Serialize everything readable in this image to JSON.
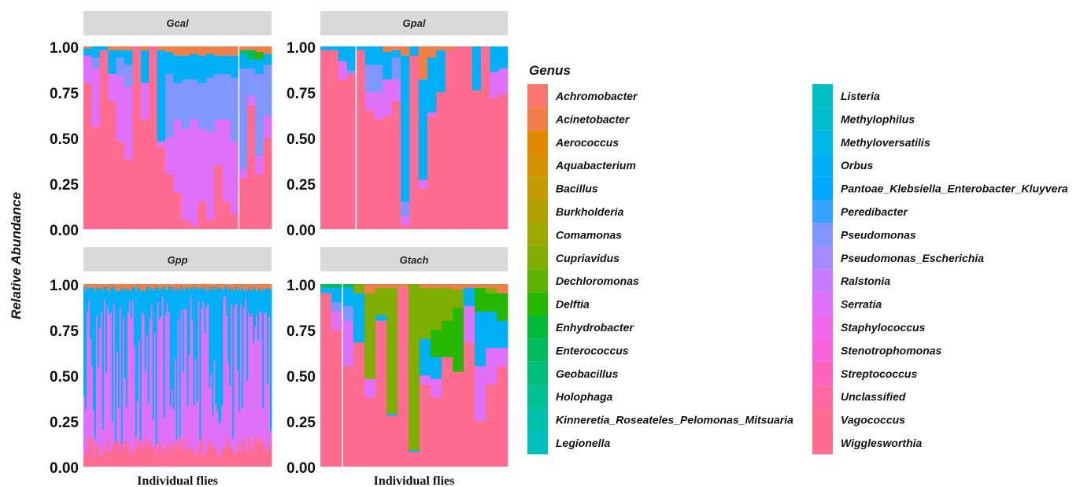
{
  "chart_data": {
    "type": "stacked-bar",
    "y_title": "Relative Abundance",
    "x_title": "Individual flies",
    "y_ticks": [
      "0.00",
      "0.25",
      "0.50",
      "0.75",
      "1.00"
    ],
    "ylim": [
      0,
      1
    ],
    "legend": {
      "title": "Genus",
      "placement": "right",
      "entries": [
        {
          "name": "Achromobacter",
          "color": "#F8766D"
        },
        {
          "name": "Acinetobacter",
          "color": "#EF7F49"
        },
        {
          "name": "Aerococcus",
          "color": "#E38900"
        },
        {
          "name": "Aquabacterium",
          "color": "#D59100"
        },
        {
          "name": "Bacillus",
          "color": "#C49A00"
        },
        {
          "name": "Burkholderia",
          "color": "#B0A100"
        },
        {
          "name": "Comamonas",
          "color": "#9AA800"
        },
        {
          "name": "Cupriavidus",
          "color": "#7FAE00"
        },
        {
          "name": "Dechloromonas",
          "color": "#5EB300"
        },
        {
          "name": "Delftia",
          "color": "#26B700"
        },
        {
          "name": "Enhydrobacter",
          "color": "#00BA38"
        },
        {
          "name": "Enterococcus",
          "color": "#00BC5C"
        },
        {
          "name": "Geobacillus",
          "color": "#00BE7A"
        },
        {
          "name": "Holophaga",
          "color": "#00C094"
        },
        {
          "name": "Kinneretia_Roseateles_Pelomonas_Mitsuaria",
          "color": "#00C1AB"
        },
        {
          "name": "Legionella",
          "color": "#00C0BE"
        },
        {
          "name": "Listeria",
          "color": "#00BFC4"
        },
        {
          "name": "Methylophilus",
          "color": "#00BDD0"
        },
        {
          "name": "Methyloversatilis",
          "color": "#00B8E7"
        },
        {
          "name": "Orbus",
          "color": "#00B0F6"
        },
        {
          "name": "Pantoae_Klebsiella_Enterobacter_Kluyvera",
          "color": "#00A9FF"
        },
        {
          "name": "Peredibacter",
          "color": "#35A2FF"
        },
        {
          "name": "Pseudomonas",
          "color": "#7F96FF"
        },
        {
          "name": "Pseudomonas_Escherichia",
          "color": "#A58AFF"
        },
        {
          "name": "Ralstonia",
          "color": "#C77CFF"
        },
        {
          "name": "Serratia",
          "color": "#DF70F8"
        },
        {
          "name": "Staphylococcus",
          "color": "#EF67EB"
        },
        {
          "name": "Stenotrophomonas",
          "color": "#FA62DB"
        },
        {
          "name": "Streptococcus",
          "color": "#FF62BC"
        },
        {
          "name": "Unclassified",
          "color": "#FF67A4"
        },
        {
          "name": "Vagococcus",
          "color": "#FF6C90"
        },
        {
          "name": "Wigglesworthia",
          "color": "#FF6C90"
        }
      ]
    },
    "facets": [
      {
        "name": "Gcal",
        "separator_after_bar": 19,
        "bars": [
          {
            "Wigglesworthia": 0.8,
            "Serratia": 0.15,
            "Orbus": 0.04,
            "Acinetobacter": 0.01
          },
          {
            "Wigglesworthia": 0.56,
            "Serratia": 0.32,
            "Pseudomonas": 0.06,
            "Orbus": 0.06
          },
          {
            "Wigglesworthia": 0.98,
            "Orbus": 0.02
          },
          {
            "Wigglesworthia": 0.7,
            "Serratia": 0.15,
            "Orbus": 0.13,
            "Acinetobacter": 0.02
          },
          {
            "Wigglesworthia": 0.48,
            "Serratia": 0.36,
            "Pseudomonas": 0.1,
            "Orbus": 0.04,
            "Acinetobacter": 0.02
          },
          {
            "Wigglesworthia": 0.38,
            "Serratia": 0.4,
            "Pseudomonas": 0.12,
            "Orbus": 0.08,
            "Acinetobacter": 0.02
          },
          {
            "Wigglesworthia": 1.0
          },
          {
            "Wigglesworthia": 0.6,
            "Serratia": 0.2,
            "Orbus": 0.18,
            "Acinetobacter": 0.02
          },
          {
            "Wigglesworthia": 1.0
          },
          {
            "Wigglesworthia": 0.45,
            "Serratia": 0.03,
            "Orbus": 0.5,
            "Acinetobacter": 0.02
          },
          {
            "Wigglesworthia": 0.3,
            "Serratia": 0.2,
            "Pseudomonas": 0.35,
            "Orbus": 0.12,
            "Acinetobacter": 0.03
          },
          {
            "Wigglesworthia": 0.2,
            "Serratia": 0.4,
            "Pseudomonas": 0.2,
            "Orbus": 0.15,
            "Acinetobacter": 0.05
          },
          {
            "Wigglesworthia": 0.05,
            "Serratia": 0.5,
            "Pseudomonas": 0.27,
            "Orbus": 0.13,
            "Acinetobacter": 0.05
          },
          {
            "Wigglesworthia": 0.02,
            "Serratia": 0.58,
            "Pseudomonas": 0.22,
            "Orbus": 0.14,
            "Acinetobacter": 0.04
          },
          {
            "Wigglesworthia": 0.15,
            "Serratia": 0.4,
            "Pseudomonas": 0.25,
            "Orbus": 0.15,
            "Acinetobacter": 0.05
          },
          {
            "Wigglesworthia": 0.05,
            "Serratia": 0.48,
            "Pseudomonas": 0.3,
            "Orbus": 0.13,
            "Acinetobacter": 0.04
          },
          {
            "Wigglesworthia": 0.35,
            "Serratia": 0.25,
            "Pseudomonas": 0.25,
            "Orbus": 0.1,
            "Acinetobacter": 0.05
          },
          {
            "Wigglesworthia": 0.15,
            "Serratia": 0.45,
            "Pseudomonas": 0.25,
            "Orbus": 0.1,
            "Acinetobacter": 0.05
          },
          {
            "Wigglesworthia": 0.08,
            "Serratia": 0.4,
            "Pseudomonas": 0.35,
            "Orbus": 0.12,
            "Acinetobacter": 0.05
          },
          {
            "Wigglesworthia": 0.28,
            "Serratia": 0.05,
            "Pseudomonas": 0.55,
            "Orbus": 0.08,
            "Acinetobacter": 0.02,
            "Enterococcus": 0.02
          },
          {
            "Wigglesworthia": 0.68,
            "Serratia": 0.05,
            "Pseudomonas": 0.15,
            "Orbus": 0.05,
            "Enterococcus": 0.05,
            "Acinetobacter": 0.02
          },
          {
            "Wigglesworthia": 0.3,
            "Serratia": 0.1,
            "Pseudomonas": 0.45,
            "Orbus": 0.08,
            "Delftia": 0.04,
            "Acinetobacter": 0.03
          },
          {
            "Wigglesworthia": 0.5,
            "Serratia": 0.12,
            "Pseudomonas": 0.28,
            "Orbus": 0.06,
            "Acinetobacter": 0.04
          }
        ]
      },
      {
        "name": "Gpal",
        "separator_after_bar": 4,
        "bars": [
          {
            "Wigglesworthia": 0.98,
            "Orbus": 0.02
          },
          {
            "Wigglesworthia": 0.98,
            "Orbus": 0.02
          },
          {
            "Wigglesworthia": 0.82,
            "Serratia": 0.1,
            "Orbus": 0.08
          },
          {
            "Wigglesworthia": 0.85,
            "Orbus": 0.13,
            "Pseudomonas": 0.02
          },
          {
            "Wigglesworthia": 0.98,
            "Orbus": 0.02
          },
          {
            "Wigglesworthia": 0.65,
            "Serratia": 0.1,
            "Pseudomonas": 0.15,
            "Orbus": 0.1
          },
          {
            "Wigglesworthia": 0.6,
            "Serratia": 0.15,
            "Pseudomonas": 0.15,
            "Orbus": 0.1
          },
          {
            "Wigglesworthia": 0.62,
            "Serratia": 0.2,
            "Orbus": 0.15,
            "Acinetobacter": 0.03
          },
          {
            "Wigglesworthia": 0.7,
            "Serratia": 0.12,
            "Pseudomonas": 0.12,
            "Orbus": 0.04,
            "Acinetobacter": 0.02
          },
          {
            "Wigglesworthia": 0.02,
            "Serratia": 0.05,
            "Orbus": 0.8,
            "Pseudomonas": 0.08,
            "Acinetobacter": 0.05
          },
          {
            "Wigglesworthia": 0.95,
            "Orbus": 0.05
          },
          {
            "Wigglesworthia": 0.22,
            "Serratia": 0.05,
            "Orbus": 0.55,
            "Acinetobacter": 0.18
          },
          {
            "Wigglesworthia": 0.62,
            "Serratia": 0.02,
            "Orbus": 0.3,
            "Acinetobacter": 0.06
          },
          {
            "Wigglesworthia": 0.75,
            "Orbus": 0.23,
            "Acinetobacter": 0.02
          },
          {
            "Wigglesworthia": 0.98,
            "Acinetobacter": 0.02
          },
          {
            "Wigglesworthia": 1.0
          },
          {
            "Wigglesworthia": 1.0
          },
          {
            "Wigglesworthia": 0.76,
            "Orbus": 0.24
          },
          {
            "Wigglesworthia": 1.0
          },
          {
            "Wigglesworthia": 0.72,
            "Serratia": 0.14,
            "Orbus": 0.14
          },
          {
            "Wigglesworthia": 0.74,
            "Serratia": 0.14,
            "Orbus": 0.12
          }
        ]
      },
      {
        "name": "Gpp",
        "separator_after_bar": null,
        "bars": "bars_dense"
      },
      {
        "name": "Gtach",
        "separator_after_bar": 2,
        "bars": [
          {
            "Wigglesworthia": 0.95,
            "Orbus": 0.03,
            "Enterococcus": 0.02
          },
          {
            "Wigglesworthia": 0.75,
            "Serratia": 0.1,
            "Pseudomonas": 0.05,
            "Orbus": 0.08,
            "Enterococcus": 0.02
          },
          {
            "Wigglesworthia": 0.55,
            "Serratia": 0.25,
            "Pseudomonas": 0.08,
            "Orbus": 0.1,
            "Enterococcus": 0.02
          },
          {
            "Wigglesworthia": 0.68,
            "Orbus": 0.27,
            "Cupriavidus": 0.05
          },
          {
            "Wigglesworthia": 0.38,
            "Serratia": 0.1,
            "Cupriavidus": 0.47,
            "Acinetobacter": 0.05
          },
          {
            "Wigglesworthia": 0.8,
            "Orbus": 0.03,
            "Cupriavidus": 0.15,
            "Acinetobacter": 0.02
          },
          {
            "Wigglesworthia": 0.28,
            "Orbus": 0.01,
            "Cupriavidus": 0.69,
            "Acinetobacter": 0.02
          },
          {
            "Wigglesworthia": 0.98,
            "Acinetobacter": 0.02
          },
          {
            "Wigglesworthia": 0.08,
            "Orbus": 0.01,
            "Cupriavidus": 0.91
          },
          {
            "Wigglesworthia": 0.45,
            "Serratia": 0.05,
            "Orbus": 0.2,
            "Cupriavidus": 0.28,
            "Acinetobacter": 0.02
          },
          {
            "Wigglesworthia": 0.38,
            "Serratia": 0.1,
            "Orbus": 0.12,
            "Delftia": 0.15,
            "Cupriavidus": 0.23,
            "Acinetobacter": 0.02
          },
          {
            "Wigglesworthia": 0.6,
            "Delftia": 0.2,
            "Cupriavidus": 0.18,
            "Acinetobacter": 0.02
          },
          {
            "Wigglesworthia": 0.52,
            "Delftia": 0.35,
            "Cupriavidus": 0.1,
            "Acinetobacter": 0.03
          },
          {
            "Wigglesworthia": 0.68,
            "Serratia": 0.2,
            "Orbus": 0.1,
            "Acinetobacter": 0.02
          },
          {
            "Wigglesworthia": 0.25,
            "Serratia": 0.3,
            "Orbus": 0.3,
            "Delftia": 0.13,
            "Acinetobacter": 0.02
          },
          {
            "Wigglesworthia": 0.45,
            "Serratia": 0.2,
            "Orbus": 0.2,
            "Delftia": 0.1,
            "Cupriavidus": 0.03,
            "Acinetobacter": 0.02
          },
          {
            "Wigglesworthia": 0.55,
            "Serratia": 0.1,
            "Orbus": 0.15,
            "Delftia": 0.15,
            "Acinetobacter": 0.05
          }
        ]
      }
    ]
  }
}
